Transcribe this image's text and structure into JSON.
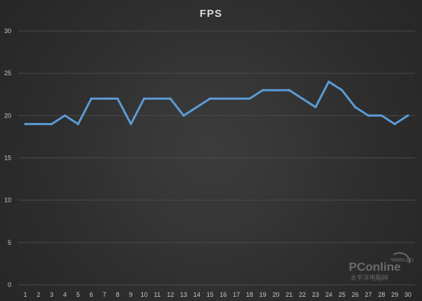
{
  "chart_data": {
    "type": "line",
    "title": "FPS",
    "xlabel": "",
    "ylabel": "",
    "x": [
      1,
      2,
      3,
      4,
      5,
      6,
      7,
      8,
      9,
      10,
      11,
      12,
      13,
      14,
      15,
      16,
      17,
      18,
      19,
      20,
      21,
      22,
      23,
      24,
      25,
      26,
      27,
      28,
      29,
      30
    ],
    "series": [
      {
        "values": [
          19,
          19,
          19,
          20,
          19,
          22,
          22,
          22,
          19,
          22,
          22,
          22,
          20,
          21,
          22,
          22,
          22,
          22,
          23,
          23,
          23,
          22,
          21,
          24,
          23,
          21,
          20,
          20,
          19,
          20
        ]
      }
    ],
    "ylim": [
      0,
      30
    ],
    "yticks": [
      0,
      5,
      10,
      15,
      20,
      25,
      30
    ],
    "grid": true,
    "legend": "none",
    "colors": {
      "line": "#5b9bd5",
      "grid": "#4a4a4a",
      "text": "#c8c8c8"
    }
  },
  "watermark": {
    "logo": "PConline",
    "domain": "www.pconline.com.cn",
    "subtitle": "太平洋电脑网"
  }
}
